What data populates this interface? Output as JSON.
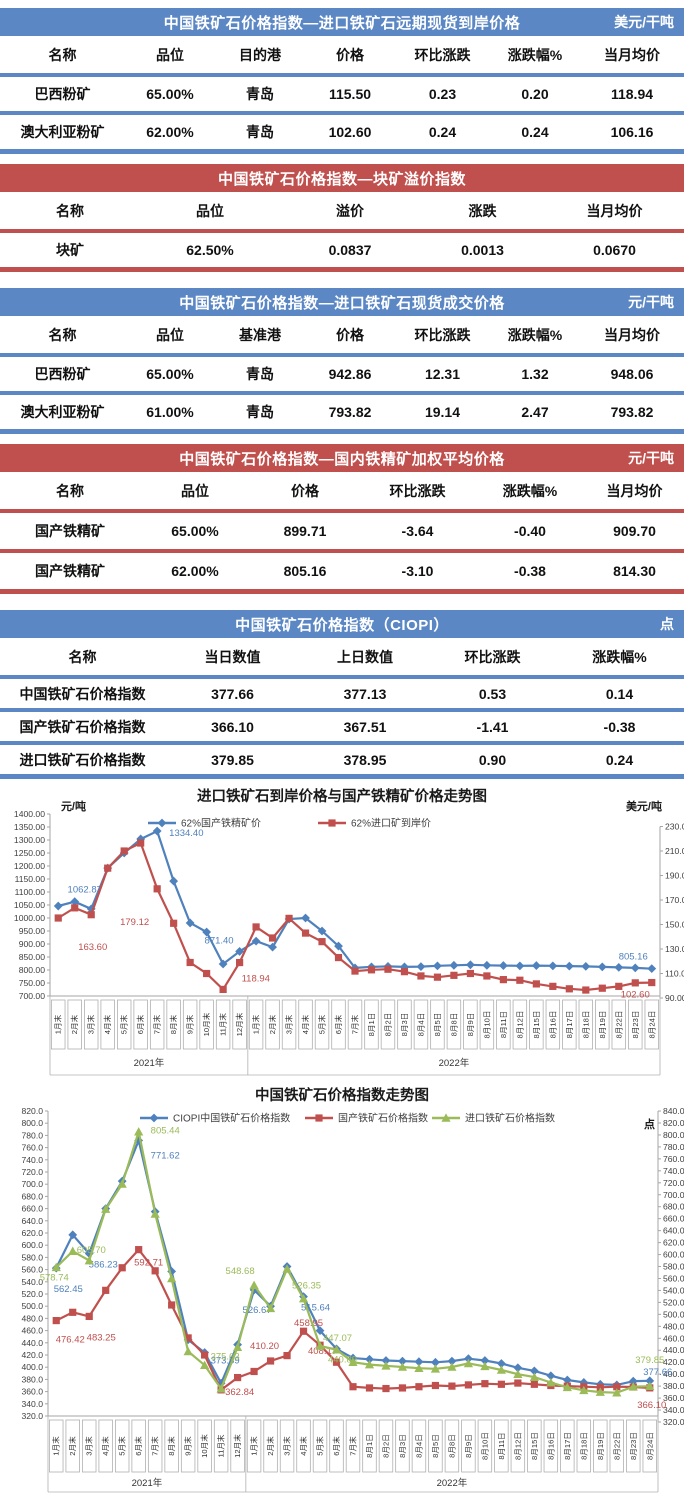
{
  "colors": {
    "blue_theme": "#5b87c4",
    "red_theme": "#c0504d",
    "series_blue": "#4f81bd",
    "series_red": "#c0504d",
    "series_green": "#9bbb59"
  },
  "tables": [
    {
      "id": "import-forward-cif",
      "theme": "blue",
      "title": "中国铁矿石价格指数—进口铁矿石远期现货到岸价格",
      "unit": "美元/干吨",
      "headers": [
        "名称",
        "品位",
        "目的港",
        "价格",
        "环比涨跌",
        "涨跌幅%",
        "当月均价"
      ],
      "rows": [
        [
          "巴西粉矿",
          "65.00%",
          "青岛",
          "115.50",
          "0.23",
          "0.20",
          "118.94"
        ],
        [
          "澳大利亚粉矿",
          "62.00%",
          "青岛",
          "102.60",
          "0.24",
          "0.24",
          "106.16"
        ]
      ]
    },
    {
      "id": "lump-premium",
      "theme": "red",
      "title": "中国铁矿石价格指数—块矿溢价指数",
      "unit": "",
      "headers": [
        "名称",
        "品位",
        "溢价",
        "涨跌",
        "当月均价"
      ],
      "rows": [
        [
          "块矿",
          "62.50%",
          "0.0837",
          "0.0013",
          "0.0670"
        ]
      ]
    },
    {
      "id": "import-spot-deal",
      "theme": "blue",
      "title": "中国铁矿石价格指数—进口铁矿石现货成交价格",
      "unit": "元/干吨",
      "headers": [
        "名称",
        "品位",
        "基准港",
        "价格",
        "环比涨跌",
        "涨跌幅%",
        "当月均价"
      ],
      "rows": [
        [
          "巴西粉矿",
          "65.00%",
          "青岛",
          "942.86",
          "12.31",
          "1.32",
          "948.06"
        ],
        [
          "澳大利亚粉矿",
          "61.00%",
          "青岛",
          "793.82",
          "19.14",
          "2.47",
          "793.82"
        ]
      ]
    },
    {
      "id": "domestic-concentrate",
      "theme": "red",
      "title": "中国铁矿石价格指数—国内铁精矿加权平均价格",
      "unit": "元/干吨",
      "headers": [
        "名称",
        "品位",
        "价格",
        "环比涨跌",
        "涨跌幅%",
        "当月均价"
      ],
      "rows": [
        [
          "国产铁精矿",
          "65.00%",
          "899.71",
          "-3.64",
          "-0.40",
          "909.70"
        ],
        [
          "国产铁精矿",
          "62.00%",
          "805.16",
          "-3.10",
          "-0.38",
          "814.30"
        ]
      ]
    },
    {
      "id": "ciopi-index",
      "theme": "blue",
      "title": "中国铁矿石价格指数（CIOPI）",
      "unit": "点",
      "headers": [
        "名称",
        "当日数值",
        "上日数值",
        "环比涨跌",
        "涨跌幅%"
      ],
      "rows": [
        [
          "中国铁矿石价格指数",
          "377.66",
          "377.13",
          "0.53",
          "0.14"
        ],
        [
          "国产铁矿石价格指数",
          "366.10",
          "367.51",
          "-1.41",
          "-0.38"
        ],
        [
          "进口铁矿石价格指数",
          "379.85",
          "378.95",
          "0.90",
          "0.24"
        ]
      ]
    }
  ],
  "chart_data": [
    {
      "type": "line",
      "title": "进口铁矿石到岸价格与国产铁精矿价格走势图",
      "left_axis": {
        "unit": "元/吨",
        "min": 700,
        "max": 1400,
        "step": 50
      },
      "right_axis": {
        "unit": "美元/吨",
        "min": 90,
        "max": 230,
        "step": 20
      },
      "x_groups": [
        {
          "label": "2021年",
          "count": 12
        },
        {
          "label": "2022年",
          "count": 25
        }
      ],
      "categories": [
        "1月末",
        "2月末",
        "3月末",
        "4月末",
        "5月末",
        "6月末",
        "7月末",
        "8月末",
        "9月末",
        "10月末",
        "11月末",
        "12月末",
        "1月末",
        "2月末",
        "3月末",
        "4月末",
        "5月末",
        "6月末",
        "7月末",
        "8月1日",
        "8月2日",
        "8月3日",
        "8月4日",
        "8月5日",
        "8月8日",
        "8月9日",
        "8月10日",
        "8月11日",
        "8月12日",
        "8月15日",
        "8月16日",
        "8月17日",
        "8月18日",
        "8月19日",
        "8月22日",
        "8月23日",
        "8月24日"
      ],
      "series": [
        {
          "name": "62%国产铁精矿价",
          "color": "#4f81bd",
          "marker": "diamond",
          "axis": "left",
          "values": [
            1046,
            1062.87,
            1035,
            1192,
            1250,
            1304,
            1334.4,
            1142,
            981,
            946,
            823,
            871.4,
            911,
            888,
            996,
            1000,
            950,
            892,
            808,
            812,
            814,
            812,
            813,
            816,
            818,
            820,
            818,
            817,
            816,
            817,
            816,
            815,
            814,
            812,
            810,
            808.26,
            805.16
          ],
          "labels": [
            {
              "i": 1,
              "text": "1062.87",
              "anchor": "middle",
              "dx": 10,
              "dy": -9
            },
            {
              "i": 6,
              "text": "1334.40",
              "anchor": "start",
              "dx": 12,
              "dy": 5
            },
            {
              "i": 11,
              "text": "871.40",
              "anchor": "end",
              "dx": -6,
              "dy": -8
            },
            {
              "i": 36,
              "text": "805.16",
              "anchor": "end",
              "dx": -4,
              "dy": -9
            }
          ]
        },
        {
          "name": "62%进口矿到岸价",
          "color": "#c0504d",
          "marker": "square",
          "axis": "right",
          "values": [
            155.3,
            163.6,
            158.0,
            196.0,
            210.0,
            216.5,
            179.12,
            151.0,
            119.0,
            110.0,
            97.0,
            118.94,
            148.0,
            139.0,
            155.0,
            143.0,
            136.0,
            123.0,
            112.0,
            113.0,
            113.5,
            111.5,
            108.0,
            107.0,
            108.5,
            110.0,
            108.0,
            105.0,
            104.5,
            101.5,
            99.5,
            97.5,
            96.5,
            98.0,
            99.5,
            102.36,
            102.6
          ],
          "labels": [
            {
              "i": 1,
              "text": "163.60",
              "anchor": "middle",
              "dx": 18,
              "dy": 42
            },
            {
              "i": 6,
              "text": "179.12",
              "anchor": "end",
              "dx": -8,
              "dy": 36
            },
            {
              "i": 11,
              "text": "118.94",
              "anchor": "start",
              "dx": 2,
              "dy": 19
            },
            {
              "i": 36,
              "text": "102.60",
              "anchor": "end",
              "dx": -2,
              "dy": 15
            }
          ]
        }
      ]
    },
    {
      "type": "line",
      "title": "中国铁矿石价格指数走势图",
      "left_axis": {
        "unit": "",
        "min": 320,
        "max": 820,
        "step": 20
      },
      "right_axis": {
        "unit": "点",
        "min": 320,
        "max": 840,
        "step": 20
      },
      "x_groups": [
        {
          "label": "2021年",
          "count": 12
        },
        {
          "label": "2022年",
          "count": 25
        }
      ],
      "categories": [
        "1月末",
        "2月末",
        "3月末",
        "4月末",
        "5月末",
        "6月末",
        "7月末",
        "8月末",
        "9月末",
        "10月末",
        "11月末",
        "12月末",
        "1月末",
        "2月末",
        "3月末",
        "4月末",
        "5月末",
        "6月末",
        "7月末",
        "8月1日",
        "8月2日",
        "8月3日",
        "8月4日",
        "8月5日",
        "8月8日",
        "8月9日",
        "8月10日",
        "8月11日",
        "8月12日",
        "8月15日",
        "8月16日",
        "8月17日",
        "8月18日",
        "8月19日",
        "8月22日",
        "8月23日",
        "8月24日"
      ],
      "series": [
        {
          "name": "CIOPI中国铁矿石价格指数",
          "color": "#4f81bd",
          "marker": "diamond",
          "axis": "left",
          "values": [
            562.45,
            617,
            586.23,
            660,
            705,
            771.62,
            655,
            557,
            445,
            424,
            373.59,
            437,
            526.67,
            500,
            565,
            515.64,
            460,
            430,
            415,
            413,
            411,
            410,
            409,
            408,
            410,
            414,
            411,
            406,
            399,
            394,
            386,
            379,
            375,
            372,
            371,
            377.13,
            377.66
          ],
          "labels": [
            {
              "i": 0,
              "text": "562.45",
              "anchor": "middle",
              "dx": 12,
              "dy": 24
            },
            {
              "i": 2,
              "text": "586.23",
              "anchor": "middle",
              "dx": 14,
              "dy": 14
            },
            {
              "i": 5,
              "text": "771.62",
              "anchor": "start",
              "dx": 12,
              "dy": 18
            },
            {
              "i": 10,
              "text": "373.59",
              "anchor": "middle",
              "dx": 4,
              "dy": -20
            },
            {
              "i": 12,
              "text": "526.67",
              "anchor": "middle",
              "dx": 3,
              "dy": 23
            },
            {
              "i": 15,
              "text": "515.64",
              "anchor": "middle",
              "dx": 12,
              "dy": 14
            },
            {
              "i": 36,
              "text": "377.66",
              "anchor": "middle",
              "dx": 8,
              "dy": -6
            }
          ]
        },
        {
          "name": "国产铁矿石价格指数",
          "color": "#c0504d",
          "marker": "square",
          "axis": "left",
          "values": [
            476.42,
            490,
            483.25,
            526,
            563,
            592.71,
            558,
            502,
            448,
            420,
            362.84,
            383,
            393,
            410.2,
            419,
            458.95,
            436,
            408.17,
            368,
            366,
            365,
            366,
            368,
            370,
            369,
            371,
            373,
            372,
            374,
            372,
            370,
            369,
            368,
            367,
            368,
            367.51,
            366.1
          ],
          "labels": [
            {
              "i": 0,
              "text": "476.42",
              "anchor": "middle",
              "dx": 14,
              "dy": 22
            },
            {
              "i": 2,
              "text": "483.25",
              "anchor": "middle",
              "dx": 12,
              "dy": 24
            },
            {
              "i": 5,
              "text": "592.71",
              "anchor": "middle",
              "dx": 10,
              "dy": 16
            },
            {
              "i": 10,
              "text": "362.84",
              "anchor": "start",
              "dx": 4,
              "dy": 5
            },
            {
              "i": 13,
              "text": "410.20",
              "anchor": "middle",
              "dx": -6,
              "dy": -12
            },
            {
              "i": 15,
              "text": "458.95",
              "anchor": "middle",
              "dx": 5,
              "dy": -5
            },
            {
              "i": 17,
              "text": "408.17",
              "anchor": "middle",
              "dx": -14,
              "dy": -8
            },
            {
              "i": 36,
              "text": "366.10",
              "anchor": "middle",
              "dx": 2,
              "dy": 20
            }
          ]
        },
        {
          "name": "进口铁矿石价格指数",
          "color": "#9bbb59",
          "marker": "triangle",
          "axis": "right",
          "values": [
            578.74,
            605.7,
            590,
            676,
            718,
            805.44,
            668,
            560,
            438,
            415,
            375.63,
            445,
            548.68,
            510,
            576,
            526.35,
            447.07,
            440.89,
            420,
            416,
            414,
            412,
            410,
            409,
            412,
            418,
            413,
            407,
            400,
            395,
            386,
            378,
            373,
            370,
            369,
            378.95,
            379.85
          ],
          "labels": [
            {
              "i": 0,
              "text": "578.74",
              "anchor": "middle",
              "dx": -2,
              "dy": 13
            },
            {
              "i": 1,
              "text": "605.70",
              "anchor": "start",
              "dx": 4,
              "dy": 2
            },
            {
              "i": 5,
              "text": "805.44",
              "anchor": "start",
              "dx": 12,
              "dy": 2
            },
            {
              "i": 10,
              "text": "375.63",
              "anchor": "middle",
              "dx": 4,
              "dy": -29
            },
            {
              "i": 12,
              "text": "548.68",
              "anchor": "middle",
              "dx": -14,
              "dy": -11
            },
            {
              "i": 15,
              "text": "526.35",
              "anchor": "middle",
              "dx": 3,
              "dy": -10
            },
            {
              "i": 16,
              "text": "447.07",
              "anchor": "start",
              "dx": 3,
              "dy": -5
            },
            {
              "i": 17,
              "text": "440.89",
              "anchor": "middle",
              "dx": 6,
              "dy": 13
            },
            {
              "i": 36,
              "text": "379.85",
              "anchor": "middle",
              "dx": 0,
              "dy": -23
            }
          ]
        }
      ]
    }
  ]
}
